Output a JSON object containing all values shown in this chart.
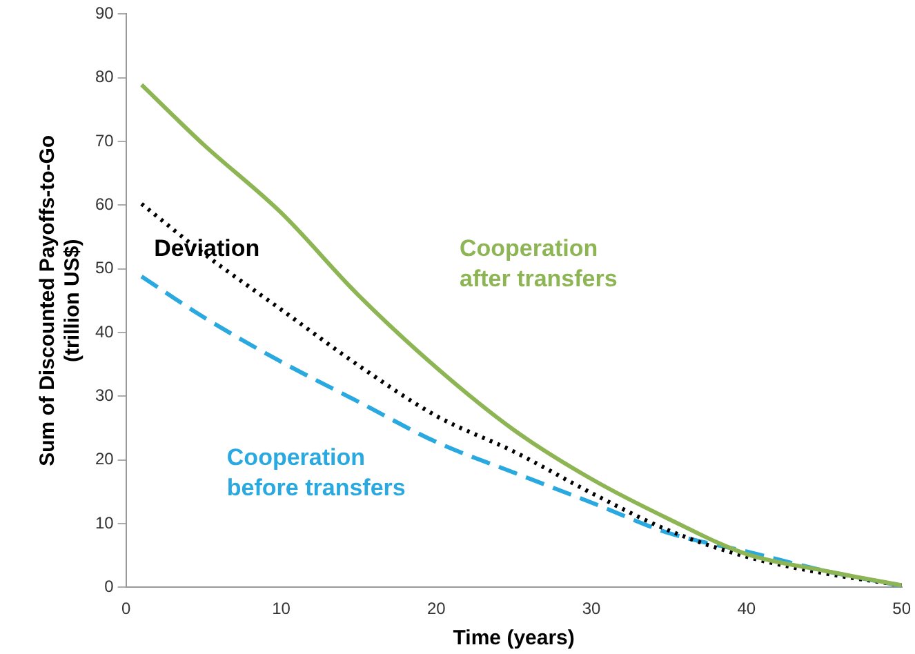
{
  "chart_data": {
    "type": "line",
    "xlabel": "Time (years)",
    "ylabel": "Sum of Discounted Payoffs-to-Go\n(trillion US$)",
    "xlim": [
      0,
      50
    ],
    "xticks": [
      0,
      10,
      20,
      30,
      40,
      50
    ],
    "ylim": [
      0,
      90
    ],
    "yticks": [
      0,
      10,
      20,
      30,
      40,
      50,
      60,
      70,
      80,
      90
    ],
    "grid": false,
    "legend": false,
    "series": [
      {
        "name": "Cooperation\nafter transfers",
        "color": "#8db554",
        "line_style": "solid",
        "x": [
          1,
          5,
          10,
          15,
          20,
          25,
          30,
          35,
          40,
          45,
          50
        ],
        "values": [
          78.9,
          69.5,
          58.8,
          45.8,
          34.5,
          24.7,
          17.0,
          10.7,
          5.2,
          2.6,
          0.3
        ]
      },
      {
        "name": "Deviation",
        "color": "#000000",
        "line_style": "dotted",
        "x": [
          1,
          5,
          10,
          15,
          20,
          25,
          30,
          35,
          40,
          45,
          50
        ],
        "values": [
          60.2,
          52.4,
          43.6,
          34.8,
          26.9,
          21.3,
          14.8,
          8.9,
          4.8,
          2.2,
          0.3
        ]
      },
      {
        "name": "Cooperation\nbefore transfers",
        "color": "#29a9e0",
        "line_style": "dashed",
        "x": [
          1,
          5,
          10,
          15,
          20,
          25,
          30,
          35,
          40,
          45,
          50
        ],
        "values": [
          48.8,
          42.4,
          35.4,
          29.1,
          22.8,
          18.0,
          13.3,
          8.5,
          5.6,
          2.6,
          0.2
        ]
      }
    ]
  }
}
